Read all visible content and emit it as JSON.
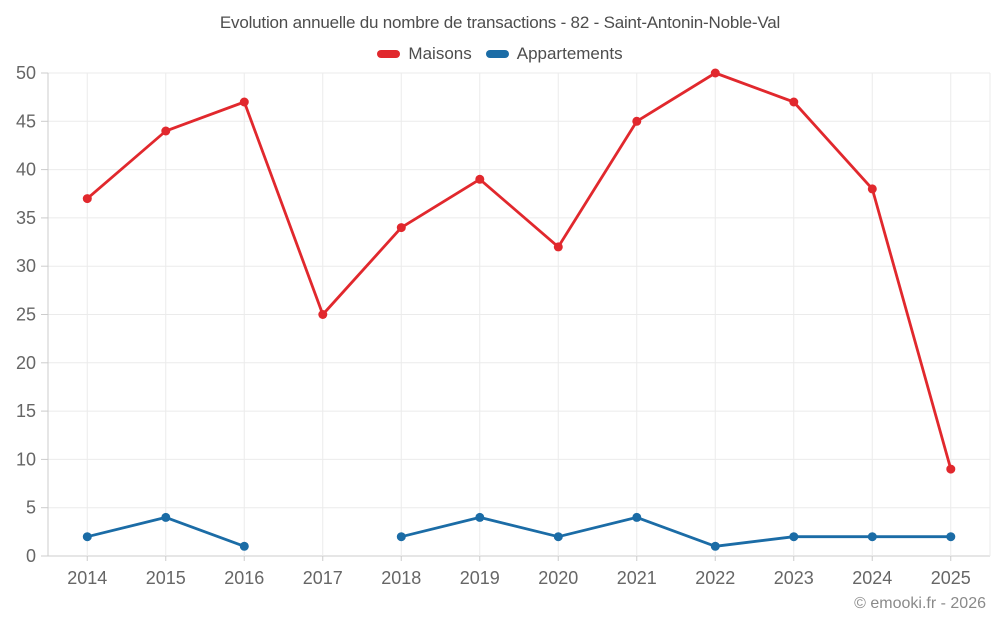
{
  "chart_data": {
    "type": "line",
    "title": "Evolution annuelle du nombre de transactions - 82 - Saint-Antonin-Noble-Val",
    "categories": [
      "2014",
      "2015",
      "2016",
      "2017",
      "2018",
      "2019",
      "2020",
      "2021",
      "2022",
      "2023",
      "2024",
      "2025"
    ],
    "series": [
      {
        "name": "Maisons",
        "color": "#e1282d",
        "values": [
          37,
          44,
          47,
          25,
          34,
          39,
          32,
          45,
          50,
          47,
          38,
          9
        ]
      },
      {
        "name": "Appartements",
        "color": "#1b6ca6",
        "values": [
          2,
          4,
          1,
          null,
          2,
          4,
          2,
          4,
          1,
          2,
          2,
          2
        ]
      }
    ],
    "xlabel": "",
    "ylabel": "",
    "ylim": [
      0,
      50
    ],
    "yticks": [
      0,
      5,
      10,
      15,
      20,
      25,
      30,
      35,
      40,
      45,
      50
    ],
    "grid": true,
    "legend_position": "top",
    "marker": "circle",
    "footer": "© emooki.fr - 2026"
  },
  "colors": {
    "grid": "#ebebeb",
    "axis": "#cccccc",
    "tick_label": "#666666",
    "title_text": "#4d4d4d",
    "footer_text": "#8a8a8a",
    "background": "#ffffff"
  }
}
